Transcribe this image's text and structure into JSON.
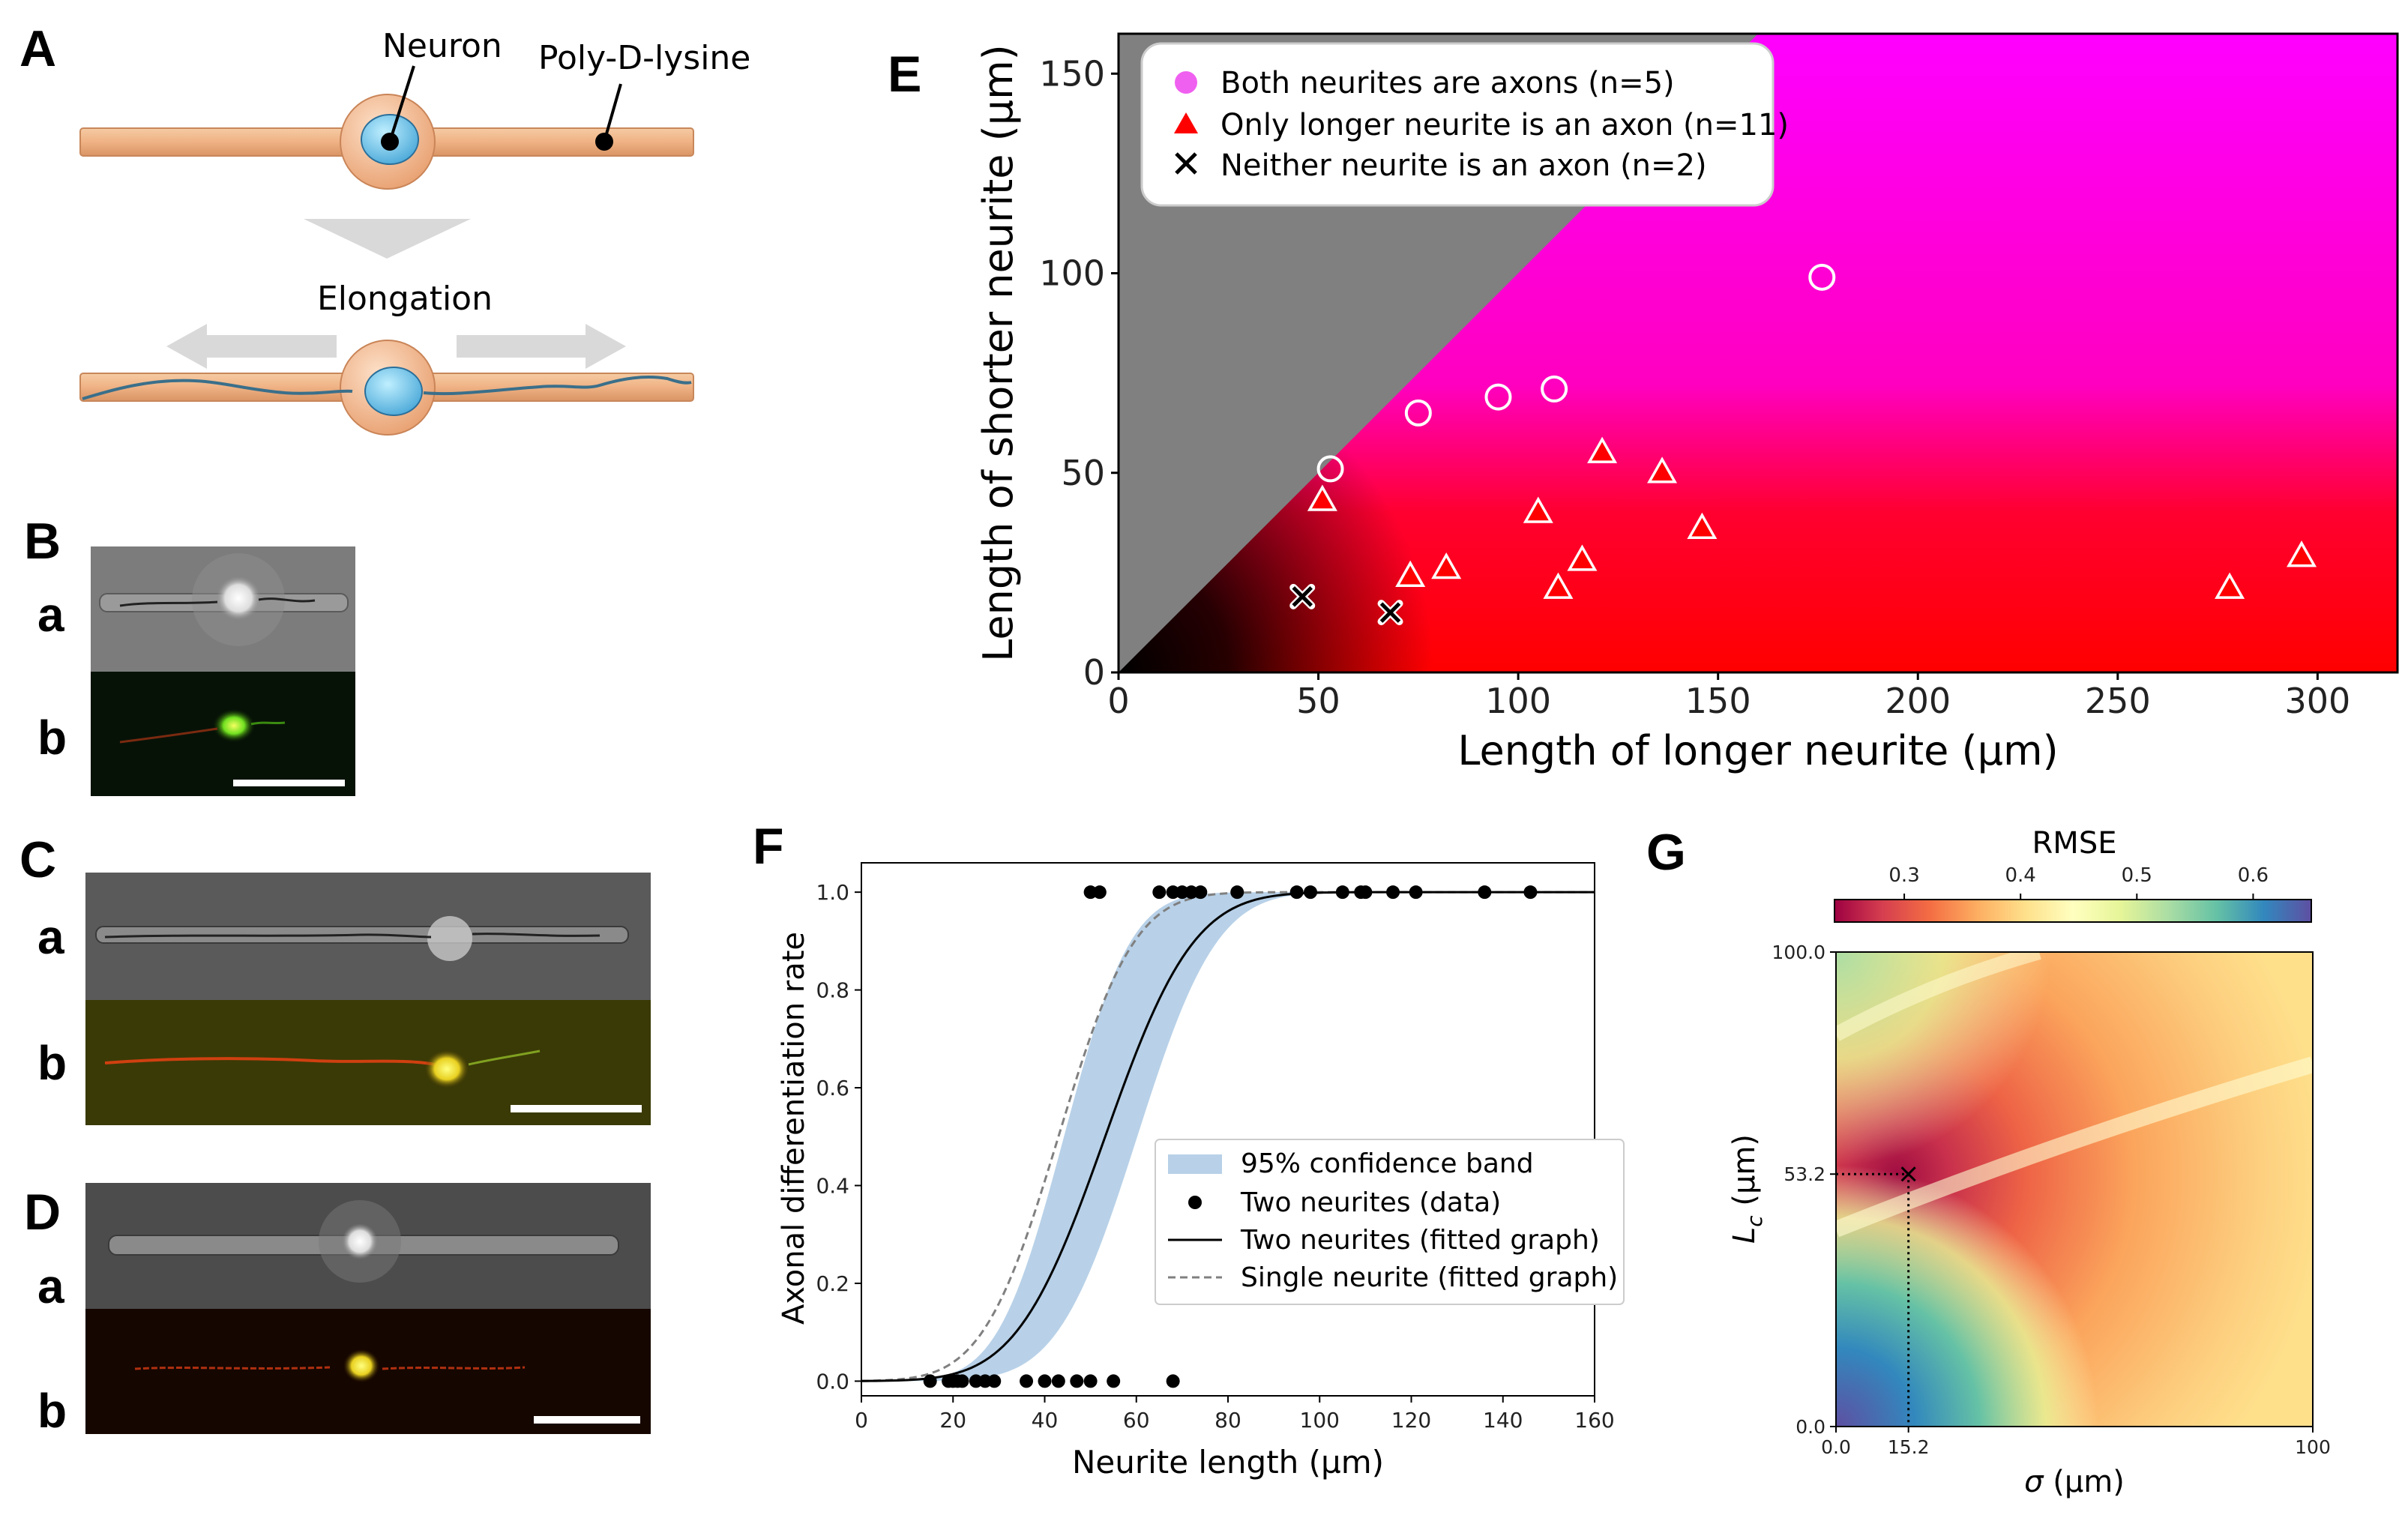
{
  "panels": {
    "A": {
      "letter": "A",
      "neuron_label": "Neuron",
      "substrate_label": "Poly-D-lysine",
      "process_label": "Elongation"
    },
    "B": {
      "letter": "B",
      "row_a": "a",
      "row_b": "b"
    },
    "C": {
      "letter": "C",
      "row_a": "a",
      "row_b": "b"
    },
    "D": {
      "letter": "D",
      "row_a": "a",
      "row_b": "b"
    },
    "E": {
      "letter": "E"
    },
    "F": {
      "letter": "F"
    },
    "G": {
      "letter": "G"
    }
  },
  "chart_data": [
    {
      "id": "E",
      "type": "scatter",
      "xlabel": "Length of longer neurite (µm)",
      "ylabel": "Length of shorter neurite (µm)",
      "xlim": [
        0,
        320
      ],
      "ylim": [
        0,
        160
      ],
      "xticks": [
        0,
        50,
        100,
        150,
        200,
        250,
        300
      ],
      "yticks": [
        0,
        50,
        100,
        150
      ],
      "legend_position": "top-left",
      "series": [
        {
          "name": "Both neurites are axons (n=5)",
          "marker": "circle",
          "color": "#f060f0",
          "points": [
            [
              53,
              51
            ],
            [
              75,
              65
            ],
            [
              95,
              69
            ],
            [
              109,
              71
            ],
            [
              176,
              99
            ]
          ]
        },
        {
          "name": "Only longer neurite is an axon (n=11)",
          "marker": "triangle",
          "color": "#ff0000",
          "points": [
            [
              51,
              43
            ],
            [
              73,
              24
            ],
            [
              82,
              26
            ],
            [
              105,
              40
            ],
            [
              110,
              21
            ],
            [
              116,
              28
            ],
            [
              121,
              55
            ],
            [
              136,
              50
            ],
            [
              146,
              36
            ],
            [
              278,
              21
            ],
            [
              296,
              29
            ]
          ]
        },
        {
          "name": "Neither neurite is an axon (n=2)",
          "marker": "x",
          "color": "#000000",
          "points": [
            [
              46,
              19
            ],
            [
              68,
              15
            ]
          ]
        }
      ]
    },
    {
      "id": "F",
      "type": "line",
      "xlabel": "Neurite length (µm)",
      "ylabel": "Axonal differentiation rate",
      "xlim": [
        0,
        160
      ],
      "ylim": [
        -0.03,
        1.06
      ],
      "xticks": [
        0,
        20,
        40,
        60,
        80,
        100,
        120,
        140,
        160
      ],
      "yticks": [
        "0.0",
        "0.2",
        "0.4",
        "0.6",
        "0.8",
        "1.0"
      ],
      "legend_position": "lower-right",
      "series": [
        {
          "name": "95% confidence band",
          "style": "band",
          "color": "#b8d1e8"
        },
        {
          "name": "Two neurites (data)",
          "style": "dots",
          "color": "#000000",
          "points_at_0": [
            15,
            19,
            20,
            21,
            22,
            25,
            27,
            29,
            36,
            40,
            43,
            47,
            50,
            55,
            68
          ],
          "points_at_1": [
            50,
            52,
            65,
            68,
            70,
            72,
            74,
            82,
            95,
            98,
            105,
            109,
            110,
            116,
            121,
            136,
            146
          ]
        },
        {
          "name": "Two neurites (fitted graph)",
          "style": "solid",
          "color": "#000000",
          "midpoint": 53.2,
          "sigma": 15.2
        },
        {
          "name": "Single neurite (fitted graph)",
          "style": "dashed",
          "color": "#808080",
          "midpoint": 43,
          "sigma": 13
        }
      ]
    },
    {
      "id": "G",
      "type": "heatmap",
      "title": "RMSE",
      "xlabel": "σ (µm)",
      "ylabel": "L_c (µm)",
      "ylabel_main": "L",
      "ylabel_sub": "c",
      "ylabel_unit": " (µm)",
      "xlabel_symbol": "σ",
      "xlabel_unit": " (µm)",
      "xlim": [
        0,
        100
      ],
      "ylim": [
        0,
        100
      ],
      "xticks": [
        "0.0",
        "15.2",
        "100"
      ],
      "yticks": [
        "0.0",
        "53.2",
        "100.0"
      ],
      "colorbar_ticks": [
        "0.3",
        "0.4",
        "0.5",
        "0.6"
      ],
      "colorbar_range": [
        0.24,
        0.65
      ],
      "colormap": "Spectral",
      "minimum": {
        "sigma": 15.2,
        "Lc": 53.2,
        "sigma_label": "15.2",
        "Lc_label": "53.2"
      }
    }
  ]
}
